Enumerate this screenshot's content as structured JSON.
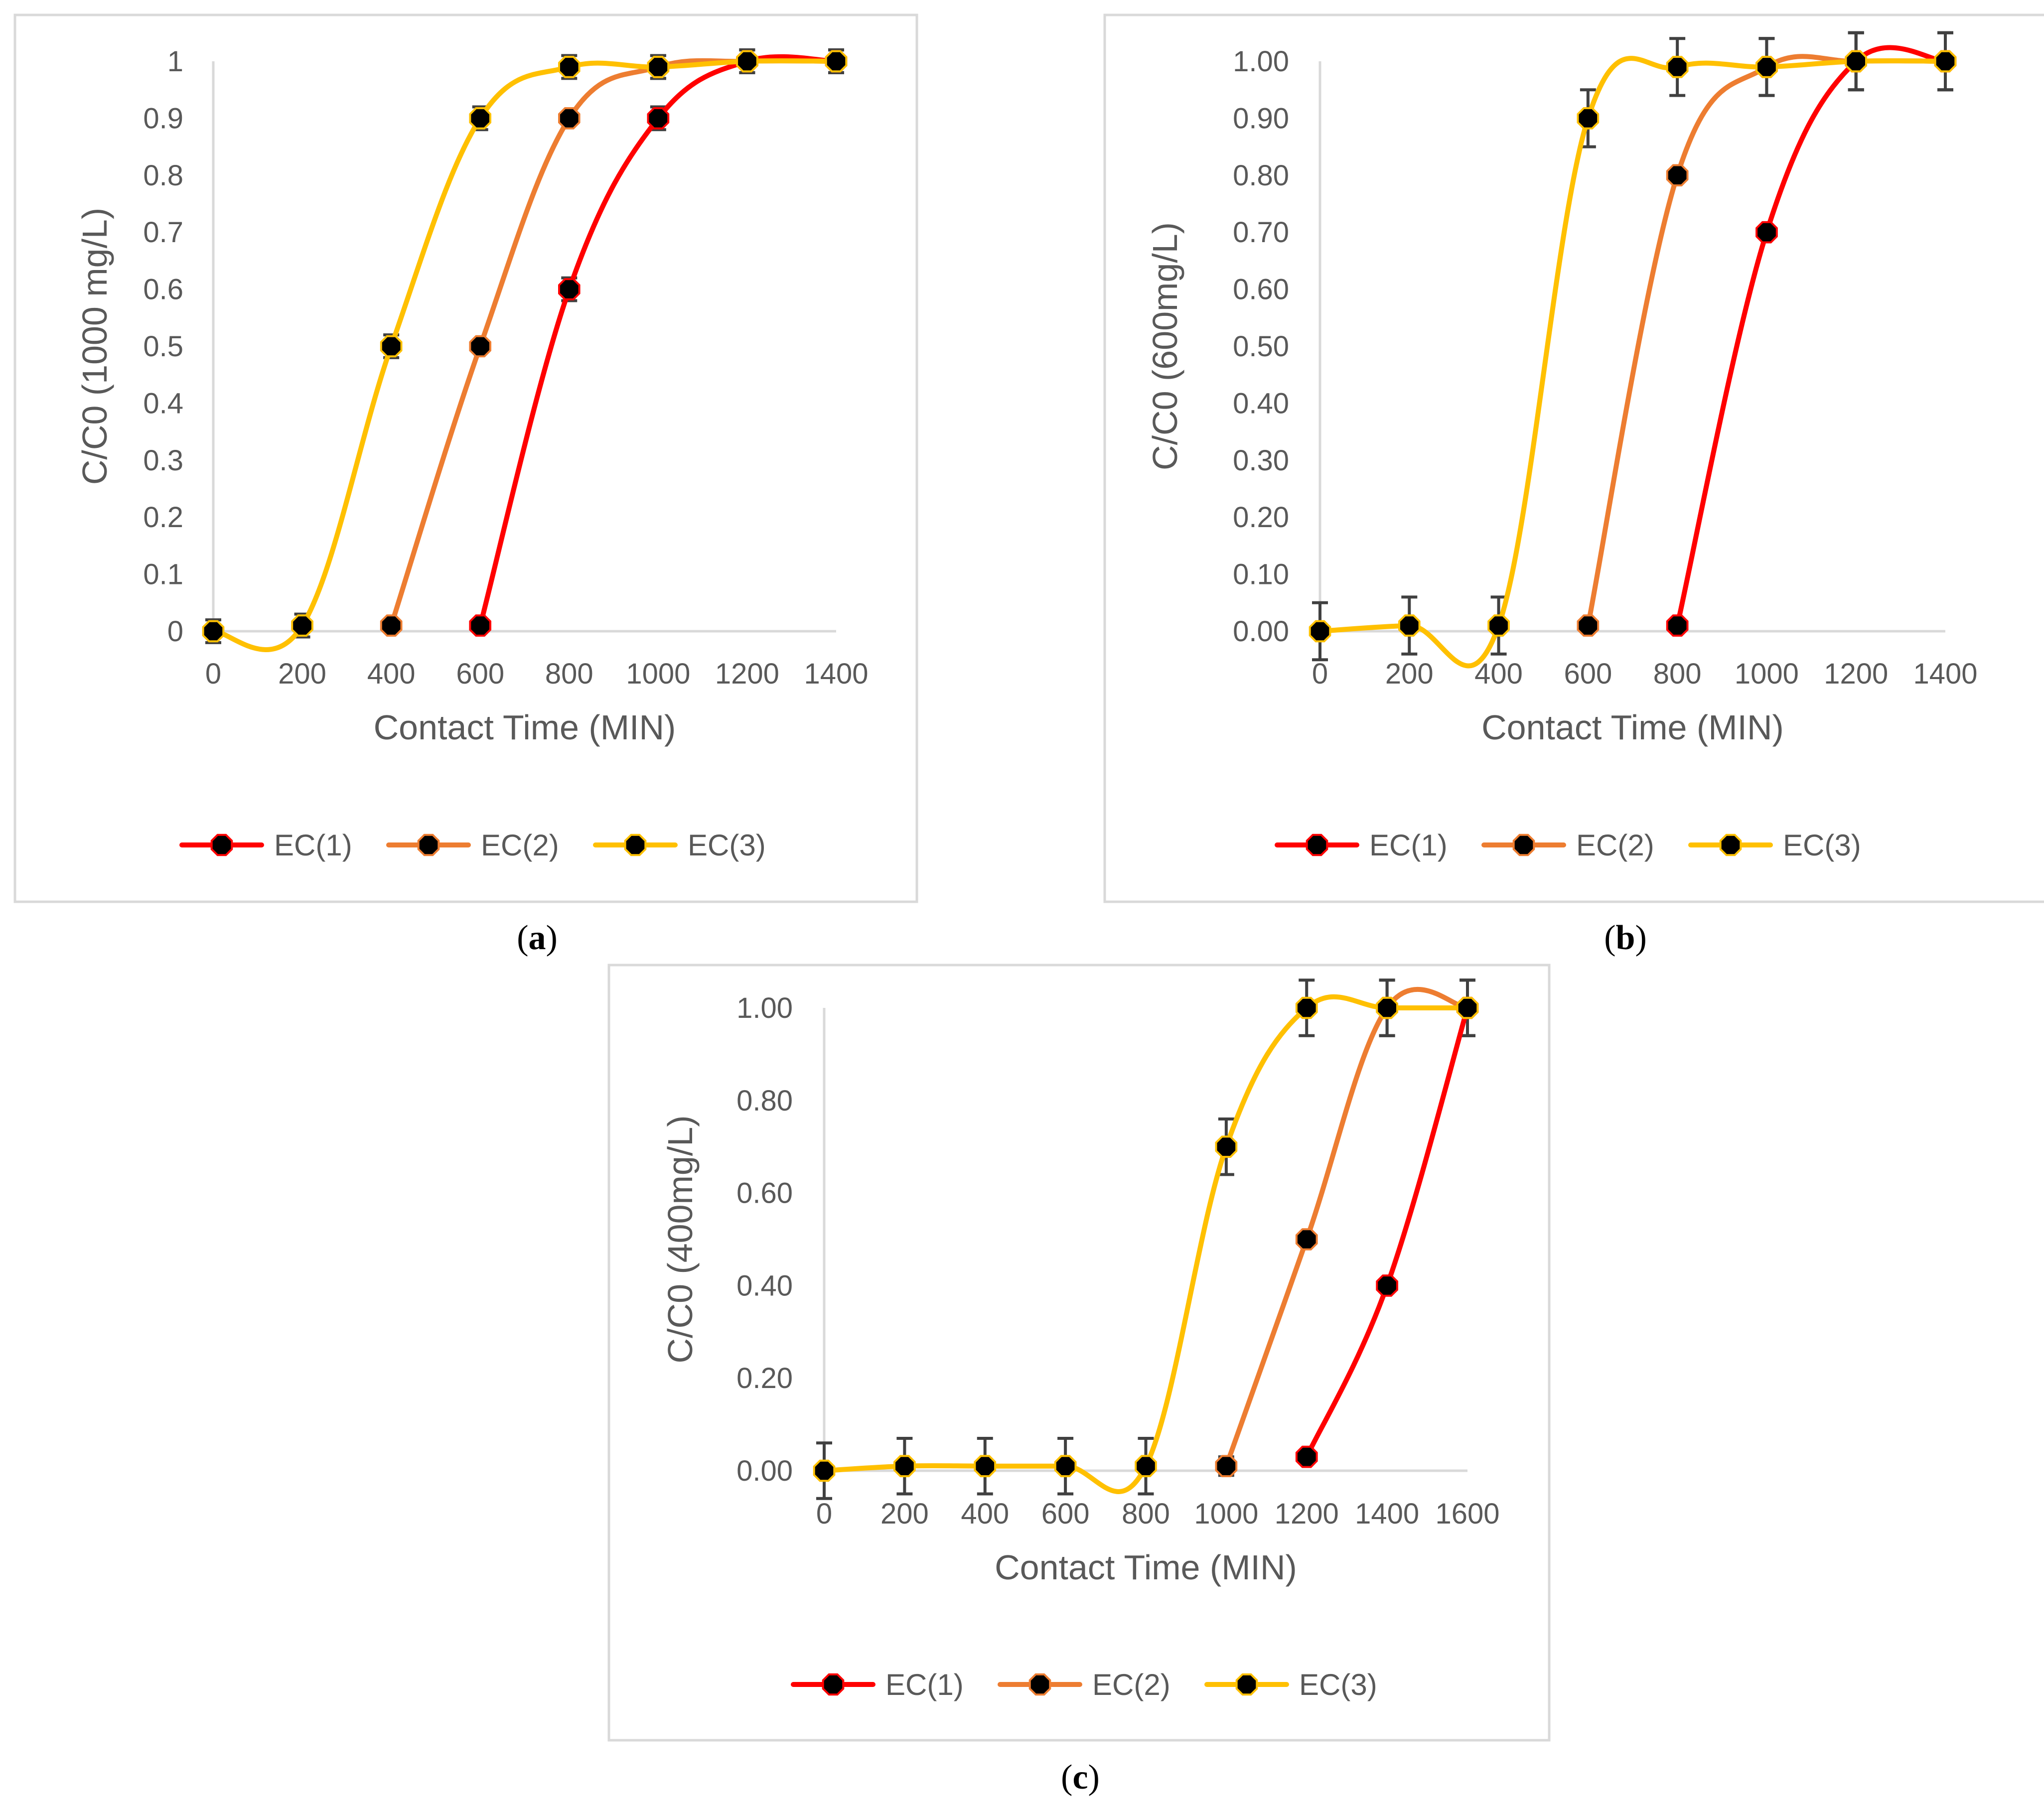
{
  "figure": {
    "series_colors": {
      "EC(1)": "#ff0000",
      "EC(2)": "#ed7d31",
      "EC(3)": "#ffc000"
    },
    "marker_color": "#000000"
  },
  "chart_data": [
    {
      "type": "line",
      "panel_label": "a",
      "xlabel": "Contact Time (MIN)",
      "ylabel": "C/C0 (1000 mg/L)",
      "xlim": [
        0,
        1400
      ],
      "ylim": [
        0,
        1
      ],
      "x_ticks": [
        "0",
        "200",
        "400",
        "600",
        "800",
        "1000",
        "1200",
        "1400"
      ],
      "y_ticks": [
        "0",
        "0.1",
        "0.2",
        "0.3",
        "0.4",
        "0.5",
        "0.6",
        "0.7",
        "0.8",
        "0.9",
        "1"
      ],
      "legend": [
        "EC(1)",
        "EC(2)",
        "EC(3)"
      ],
      "legend_position": "bottom",
      "series": [
        {
          "name": "EC(1)",
          "x": [
            600,
            800,
            1000,
            1200,
            1400
          ],
          "y": [
            0.01,
            0.6,
            0.9,
            1.0,
            1.0
          ],
          "error": [
            0.01,
            0.02,
            0.02,
            0.02,
            0.02
          ]
        },
        {
          "name": "EC(2)",
          "x": [
            400,
            600,
            800,
            1000,
            1200,
            1400
          ],
          "y": [
            0.01,
            0.5,
            0.9,
            0.99,
            1.0,
            1.0
          ],
          "error": [
            0.01,
            0.01,
            0.01,
            0.02,
            0.02,
            0.02
          ]
        },
        {
          "name": "EC(3)",
          "x": [
            0,
            200,
            400,
            600,
            800,
            1000,
            1200,
            1400
          ],
          "y": [
            0.0,
            0.01,
            0.5,
            0.9,
            0.99,
            0.99,
            1.0,
            1.0
          ],
          "error": [
            0.02,
            0.02,
            0.02,
            0.02,
            0.02,
            0.02,
            0.02,
            0.02
          ]
        }
      ]
    },
    {
      "type": "line",
      "panel_label": "b",
      "xlabel": "Contact Time (MIN)",
      "ylabel": "C/C0 (600mg/L)",
      "xlim": [
        0,
        1400
      ],
      "ylim": [
        0,
        1
      ],
      "x_ticks": [
        "0",
        "200",
        "400",
        "600",
        "800",
        "1000",
        "1200",
        "1400"
      ],
      "y_ticks": [
        "0.00",
        "0.10",
        "0.20",
        "0.30",
        "0.40",
        "0.50",
        "0.60",
        "0.70",
        "0.80",
        "0.90",
        "1.00"
      ],
      "legend": [
        "EC(1)",
        "EC(2)",
        "EC(3)"
      ],
      "legend_position": "bottom",
      "series": [
        {
          "name": "EC(1)",
          "x": [
            800,
            1000,
            1200,
            1400
          ],
          "y": [
            0.01,
            0.7,
            1.0,
            1.0
          ],
          "error": [
            0.005,
            0.005,
            0.05,
            0.05
          ]
        },
        {
          "name": "EC(2)",
          "x": [
            600,
            800,
            1000,
            1200,
            1400
          ],
          "y": [
            0.01,
            0.8,
            0.99,
            1.0,
            1.0
          ],
          "error": [
            0.005,
            0.005,
            0.05,
            0.05,
            0.05
          ]
        },
        {
          "name": "EC(3)",
          "x": [
            0,
            200,
            400,
            600,
            800,
            1000,
            1200,
            1400
          ],
          "y": [
            0.0,
            0.01,
            0.01,
            0.9,
            0.99,
            0.99,
            1.0,
            1.0
          ],
          "error": [
            0.05,
            0.05,
            0.05,
            0.05,
            0.05,
            0.05,
            0.05,
            0.05
          ]
        }
      ]
    },
    {
      "type": "line",
      "panel_label": "c",
      "xlabel": "Contact Time (MIN)",
      "ylabel": "C/C0 (400mg/L)",
      "xlim": [
        0,
        1600
      ],
      "ylim": [
        0,
        1
      ],
      "x_ticks": [
        "0",
        "200",
        "400",
        "600",
        "800",
        "1000",
        "1200",
        "1400",
        "1600"
      ],
      "y_ticks": [
        "0.00",
        "0.20",
        "0.40",
        "0.60",
        "0.80",
        "1.00"
      ],
      "legend": [
        "EC(1)",
        "EC(2)",
        "EC(3)"
      ],
      "legend_position": "bottom",
      "series": [
        {
          "name": "EC(1)",
          "x": [
            1200,
            1400,
            1600
          ],
          "y": [
            0.03,
            0.4,
            1.0
          ],
          "error": [
            0.01,
            0.01,
            0.06
          ]
        },
        {
          "name": "EC(2)",
          "x": [
            1000,
            1200,
            1400,
            1600
          ],
          "y": [
            0.01,
            0.5,
            1.0,
            1.0
          ],
          "error": [
            0.02,
            0.01,
            0.06,
            0.06
          ]
        },
        {
          "name": "EC(3)",
          "x": [
            0,
            200,
            400,
            600,
            800,
            1000,
            1200,
            1400,
            1600
          ],
          "y": [
            0.0,
            0.01,
            0.01,
            0.01,
            0.01,
            0.7,
            1.0,
            1.0,
            1.0
          ],
          "error": [
            0.06,
            0.06,
            0.06,
            0.06,
            0.06,
            0.06,
            0.06,
            0.06,
            0.06
          ]
        }
      ]
    }
  ]
}
